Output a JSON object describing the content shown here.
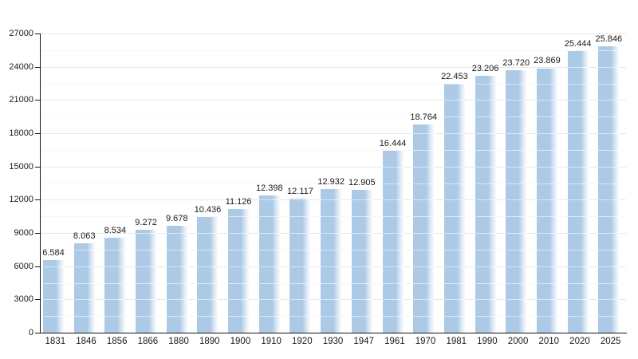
{
  "chart_data": {
    "type": "bar",
    "categories": [
      "1831",
      "1846",
      "1856",
      "1866",
      "1880",
      "1890",
      "1900",
      "1910",
      "1920",
      "1930",
      "1947",
      "1961",
      "1970",
      "1981",
      "1990",
      "2000",
      "2010",
      "2020",
      "2025"
    ],
    "values": [
      6584,
      8063,
      8534,
      9272,
      9678,
      10436,
      11126,
      12398,
      12117,
      12932,
      12905,
      16444,
      18764,
      22453,
      23206,
      23720,
      23869,
      25444,
      25846
    ],
    "value_labels": [
      "6.584",
      "8.063",
      "8.534",
      "9.272",
      "9.678",
      "10.436",
      "11.126",
      "12.398",
      "12.117",
      "12.932",
      "12.905",
      "16.444",
      "18.764",
      "22.453",
      "23.206",
      "23.720",
      "23.869",
      "25.444",
      "25.846"
    ],
    "xlabel": "",
    "ylabel": "",
    "ylim": [
      0,
      27000
    ],
    "y_major_step": 3000,
    "y_minor_step": 1500,
    "y_tick_labels": [
      "0",
      "3000",
      "6000",
      "9000",
      "12000",
      "15000",
      "18000",
      "21000",
      "24000",
      "27000"
    ],
    "grid": true,
    "legend_position": "none",
    "colors": {
      "bar": "#acc9e5",
      "bar_fade": "#edf3fa",
      "major_grid": "#c9c9c9",
      "minor_grid": "#f0f0f0",
      "grid_overlay_on_bars": "rgba(255,255,255,0.55)",
      "axis": "#161616",
      "text": "#1a1a1a",
      "background": "#ffffff"
    }
  }
}
